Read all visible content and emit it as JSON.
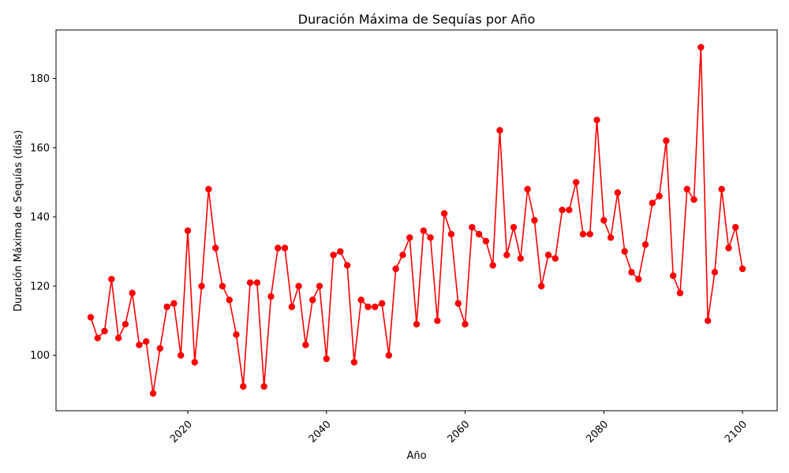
{
  "chart_data": {
    "type": "line",
    "title": "Duración Máxima de Sequías por Año",
    "xlabel": "Año",
    "ylabel": "Duración Máxima de Sequías (días)",
    "xlim": [
      2001,
      2105
    ],
    "ylim": [
      84,
      194
    ],
    "xticks": [
      2020,
      2040,
      2060,
      2080,
      2100
    ],
    "yticks": [
      100,
      120,
      140,
      160,
      180
    ],
    "grid": false,
    "color": "#ff0000",
    "series": [
      {
        "x": [
          2006,
          2007,
          2008,
          2009,
          2010,
          2011,
          2012,
          2013,
          2014,
          2015,
          2016,
          2017,
          2018,
          2019,
          2020,
          2021,
          2022,
          2023,
          2024,
          2025,
          2026,
          2027,
          2028,
          2029,
          2030,
          2031,
          2032,
          2033,
          2034,
          2035,
          2036,
          2037,
          2038,
          2039,
          2040,
          2041,
          2042,
          2043,
          2044,
          2045,
          2046,
          2047,
          2048,
          2049,
          2050,
          2051,
          2052,
          2053,
          2054,
          2055,
          2056,
          2057,
          2058,
          2059,
          2060,
          2061,
          2062,
          2063,
          2064,
          2065,
          2066,
          2067,
          2068,
          2069,
          2070,
          2071,
          2072,
          2073,
          2074,
          2075,
          2076,
          2077,
          2078,
          2079,
          2080,
          2081,
          2082,
          2083,
          2084,
          2085,
          2086,
          2087,
          2088,
          2089,
          2090,
          2091,
          2092,
          2093,
          2094,
          2095,
          2096,
          2097,
          2098,
          2099,
          2100
        ],
        "values": [
          111,
          105,
          107,
          122,
          105,
          109,
          118,
          103,
          104,
          89,
          102,
          114,
          115,
          100,
          136,
          98,
          120,
          148,
          131,
          120,
          116,
          106,
          91,
          121,
          121,
          91,
          117,
          131,
          131,
          114,
          120,
          103,
          116,
          120,
          99,
          129,
          130,
          126,
          98,
          116,
          114,
          114,
          115,
          100,
          125,
          129,
          134,
          109,
          136,
          134,
          110,
          141,
          135,
          115,
          109,
          137,
          135,
          133,
          126,
          165,
          129,
          137,
          128,
          148,
          139,
          120,
          129,
          128,
          142,
          142,
          150,
          135,
          135,
          168,
          139,
          134,
          147,
          130,
          124,
          122,
          132,
          144,
          146,
          162,
          123,
          118,
          148,
          145,
          189,
          110,
          124,
          148,
          131,
          137,
          125
        ]
      }
    ]
  }
}
